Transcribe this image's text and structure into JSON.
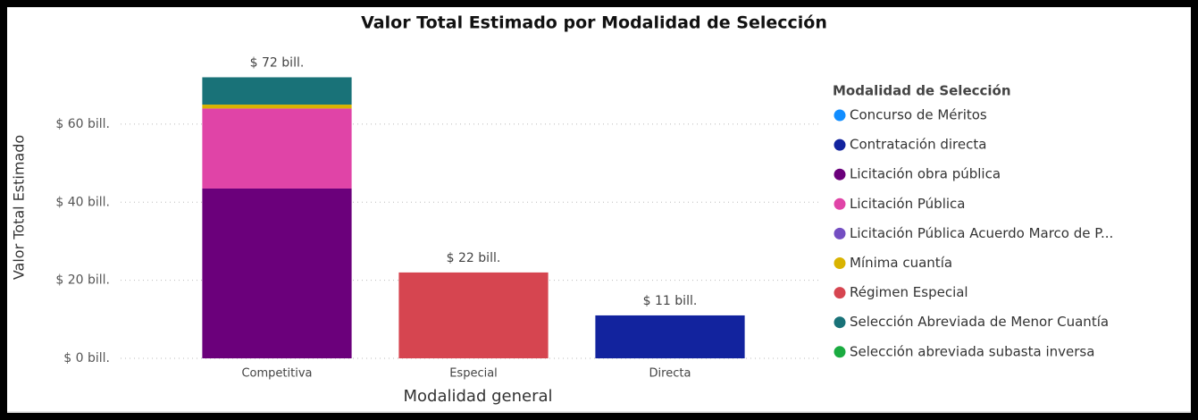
{
  "chart_data": {
    "type": "stacked_bar",
    "title": "Valor Total Estimado por Modalidad de Selección",
    "y_label": "Valor Total Estimado",
    "x_label": "Modalidad general",
    "legend_title": "Modalidad de Selección",
    "categories": [
      "Competitiva",
      "Especial",
      "Directa"
    ],
    "series": [
      {
        "name": "Concurso de Méritos",
        "color": "#118DFF",
        "values": [
          null,
          null,
          null
        ]
      },
      {
        "name": "Contratación directa",
        "color": "#12239E",
        "values": [
          null,
          null,
          11
        ]
      },
      {
        "name": "Licitación obra pública",
        "color": "#6B007B",
        "values": [
          43.5,
          null,
          null
        ]
      },
      {
        "name": "Licitación Pública",
        "color": "#E044A7",
        "values": [
          20.5,
          null,
          null
        ]
      },
      {
        "name": "Licitación Pública Acuerdo Marco de P...",
        "color": "#744EC2",
        "values": [
          null,
          null,
          null
        ]
      },
      {
        "name": "Mínima cuantía",
        "color": "#D9B300",
        "values": [
          1,
          null,
          null
        ]
      },
      {
        "name": "Régimen Especial",
        "color": "#D64550",
        "values": [
          null,
          22,
          null
        ]
      },
      {
        "name": "Selección Abreviada de Menor Cuantía",
        "color": "#197278",
        "values": [
          7,
          null,
          null
        ]
      },
      {
        "name": "Selección abreviada subasta inversa",
        "color": "#1AAB40",
        "values": [
          null,
          null,
          null
        ]
      }
    ],
    "totals": [
      72,
      22,
      11
    ],
    "total_labels": [
      "$ 72 bill.",
      "$ 22 bill.",
      "$ 11 bill."
    ],
    "ylim": [
      0,
      76
    ],
    "yticks": [
      {
        "value": 0,
        "label": "$ 0 bill."
      },
      {
        "value": 20,
        "label": "$ 20 bill."
      },
      {
        "value": 40,
        "label": "$ 40 bill."
      },
      {
        "value": 60,
        "label": "$ 60 bill."
      }
    ],
    "grid": true
  }
}
